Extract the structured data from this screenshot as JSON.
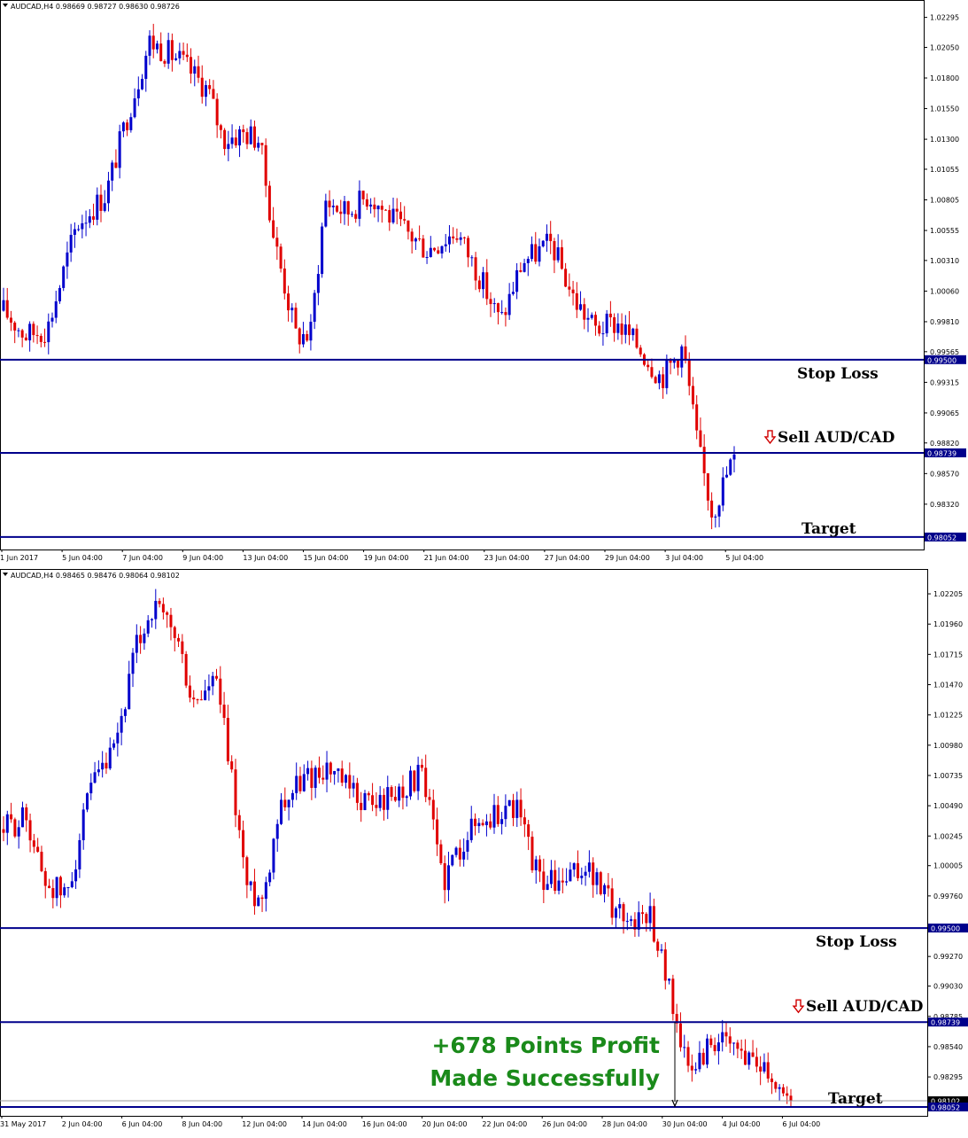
{
  "chart_data": [
    {
      "type": "candlestick",
      "header": {
        "symbol": "AUDCAD,H4",
        "ohlc": [
          "0.98669",
          "0.98727",
          "0.98630",
          "0.98726"
        ]
      },
      "y_ticks": [
        "1.02295",
        "1.02050",
        "1.01800",
        "1.01550",
        "1.01300",
        "1.01055",
        "1.00805",
        "1.00555",
        "1.00310",
        "1.00060",
        "0.99810",
        "0.99565",
        "0.99315",
        "0.99065",
        "0.98820",
        "0.98570",
        "0.98320"
      ],
      "x_ticks": [
        "1 Jun 2017",
        "5 Jun 04:00",
        "7 Jun 04:00",
        "9 Jun 04:00",
        "13 Jun 04:00",
        "15 Jun 04:00",
        "19 Jun 04:00",
        "21 Jun 04:00",
        "23 Jun 04:00",
        "27 Jun 04:00",
        "29 Jun 04:00",
        "3 Jul 04:00",
        "5 Jul 04:00"
      ],
      "ylim": [
        0.9795,
        1.0235
      ],
      "levels": [
        {
          "name": "stop-loss",
          "value": 0.995,
          "price_label": "0.99500",
          "annotation": "Stop Loss",
          "arrow": false
        },
        {
          "name": "sell",
          "value": 0.98739,
          "price_label": "0.98739",
          "annotation": "Sell AUD/CAD",
          "arrow": true
        },
        {
          "name": "target",
          "value": 0.98052,
          "price_label": "0.98052",
          "annotation": "Target",
          "arrow": false
        }
      ],
      "profit_text": []
    },
    {
      "type": "candlestick",
      "header": {
        "symbol": "AUDCAD,H4",
        "ohlc": [
          "0.98465",
          "0.98476",
          "0.98064",
          "0.98102"
        ]
      },
      "y_ticks": [
        "1.02205",
        "1.01960",
        "1.01715",
        "1.01470",
        "1.01225",
        "1.00980",
        "1.00735",
        "1.00490",
        "1.00245",
        "1.00005",
        "0.99760",
        "0.99270",
        "0.99030",
        "0.98785",
        "0.98540",
        "0.98295"
      ],
      "x_ticks": [
        "31 May 2017",
        "2 Jun 04:00",
        "6 Jun 04:00",
        "8 Jun 04:00",
        "12 Jun 04:00",
        "14 Jun 04:00",
        "16 Jun 04:00",
        "20 Jun 04:00",
        "22 Jun 04:00",
        "26 Jun 04:00",
        "28 Jun 04:00",
        "30 Jun 04:00",
        "4 Jul 04:00",
        "6 Jul 04:00"
      ],
      "ylim": [
        0.9798,
        1.0232
      ],
      "levels": [
        {
          "name": "stop-loss",
          "value": 0.995,
          "price_label": "0.99500",
          "annotation": "Stop Loss",
          "arrow": false
        },
        {
          "name": "sell",
          "value": 0.98739,
          "price_label": "0.98739",
          "annotation": "Sell AUD/CAD",
          "arrow": true
        },
        {
          "name": "current",
          "value": 0.98102,
          "price_label": "0.98102",
          "annotation": "",
          "arrow": false
        },
        {
          "name": "target",
          "value": 0.98052,
          "price_label": "0.98052",
          "annotation": "Target",
          "arrow": false
        }
      ],
      "profit_text": [
        "+678 Points Profit",
        "Made Successfully"
      ]
    }
  ],
  "colors": {
    "up": "#0000cc",
    "down": "#e00000",
    "level": "#00008b",
    "profit": "#1a8a1a"
  }
}
